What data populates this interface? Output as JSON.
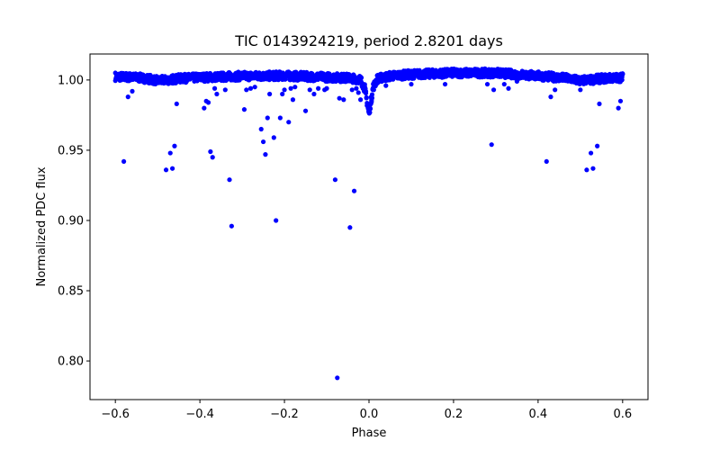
{
  "chart_data": {
    "type": "scatter",
    "title": "TIC 0143924219, period 2.8201 days",
    "xlabel": "Phase",
    "ylabel": "Normalized PDC flux",
    "xlim": [
      -0.66,
      0.66
    ],
    "ylim": [
      0.7725,
      1.0185
    ],
    "xticks": [
      -0.6,
      -0.4,
      -0.2,
      0.0,
      0.2,
      0.4,
      0.6
    ],
    "xtick_labels": [
      "−0.6",
      "−0.4",
      "−0.2",
      "0.0",
      "0.2",
      "0.4",
      "0.6"
    ],
    "yticks": [
      0.8,
      0.85,
      0.9,
      0.95,
      1.0
    ],
    "ytick_labels": [
      "0.80",
      "0.85",
      "0.90",
      "0.95",
      "1.00"
    ],
    "grid": false,
    "marker_color": "#0000ff",
    "baseline": {
      "description": "dense phase-folded light curve",
      "x": [
        -0.6,
        -0.55,
        -0.52,
        -0.5,
        -0.48,
        -0.45,
        -0.4,
        -0.3,
        -0.2,
        -0.1,
        -0.05,
        -0.02,
        -0.01,
        0.0,
        0.01,
        0.02,
        0.05,
        0.1,
        0.2,
        0.3,
        0.4,
        0.45,
        0.48,
        0.5,
        0.52,
        0.55,
        0.6
      ],
      "y": [
        1.0025,
        1.0018,
        1.0008,
        0.9995,
        1.0,
        1.001,
        1.0018,
        1.0028,
        1.003,
        1.002,
        1.0015,
        1.0005,
        0.994,
        0.976,
        0.995,
        1.001,
        1.0028,
        1.004,
        1.005,
        1.005,
        1.003,
        1.0018,
        1.0008,
        0.9995,
        1.0,
        1.001,
        1.0018
      ]
    },
    "outliers": {
      "x": [
        -0.58,
        -0.57,
        -0.56,
        -0.48,
        -0.47,
        -0.465,
        -0.46,
        -0.455,
        -0.39,
        -0.385,
        -0.38,
        -0.375,
        -0.37,
        -0.365,
        -0.36,
        -0.34,
        -0.325,
        -0.33,
        -0.295,
        -0.29,
        -0.28,
        -0.27,
        -0.255,
        -0.25,
        -0.245,
        -0.24,
        -0.235,
        -0.225,
        -0.22,
        -0.21,
        -0.205,
        -0.2,
        -0.19,
        -0.185,
        -0.18,
        -0.175,
        -0.15,
        -0.14,
        -0.13,
        -0.12,
        -0.105,
        -0.1,
        -0.08,
        -0.075,
        -0.07,
        -0.06,
        -0.045,
        -0.04,
        -0.035,
        -0.03,
        -0.025,
        -0.02,
        0.04,
        0.1,
        0.18,
        0.28,
        0.29,
        0.295,
        0.32,
        0.33,
        0.35,
        0.42,
        0.43,
        0.44,
        0.5,
        0.515,
        0.525,
        0.53,
        0.54,
        0.545,
        0.59,
        0.595
      ],
      "y": [
        0.942,
        0.988,
        0.992,
        0.936,
        0.948,
        0.937,
        0.953,
        0.983,
        0.98,
        0.985,
        0.984,
        0.949,
        0.945,
        0.994,
        0.99,
        0.993,
        0.896,
        0.929,
        0.979,
        0.993,
        0.994,
        0.995,
        0.965,
        0.956,
        0.947,
        0.973,
        0.99,
        0.959,
        0.9,
        0.973,
        0.99,
        0.993,
        0.97,
        0.994,
        0.986,
        0.995,
        0.978,
        0.993,
        0.99,
        0.994,
        0.993,
        0.994,
        0.929,
        0.788,
        0.987,
        0.986,
        0.895,
        0.993,
        0.921,
        0.994,
        0.991,
        0.986,
        0.996,
        0.997,
        0.997,
        0.997,
        0.954,
        0.993,
        0.997,
        0.994,
        0.999,
        0.942,
        0.988,
        0.993,
        0.993,
        0.936,
        0.948,
        0.937,
        0.953,
        0.983,
        0.98,
        0.985
      ]
    }
  }
}
